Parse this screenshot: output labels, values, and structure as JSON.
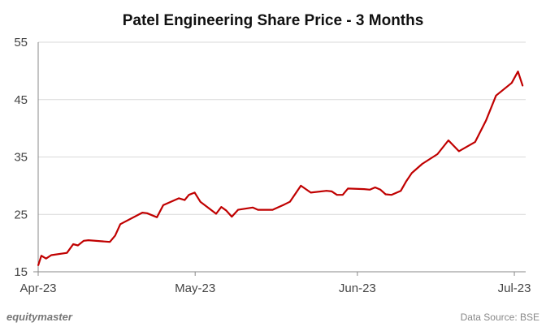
{
  "chart_data": {
    "type": "line",
    "title": "Patel Engineering Share Price - 3 Months",
    "xlabel": "",
    "ylabel": "",
    "x_unit": "days since 1 Apr 2023",
    "xlim": [
      0,
      93
    ],
    "ylim": [
      15,
      55
    ],
    "y_ticks": [
      15,
      25,
      35,
      45,
      55
    ],
    "x_ticks": [
      {
        "label": "Apr-23",
        "day": 0
      },
      {
        "label": "May-23",
        "day": 30
      },
      {
        "label": "Jun-23",
        "day": 61
      },
      {
        "label": "Jul-23",
        "day": 91
      }
    ],
    "grid": true,
    "color": "#C00000",
    "series": [
      {
        "name": "Patel Engineering",
        "x": [
          0,
          0.6,
          1.5,
          2.5,
          5.5,
          6.7,
          7.6,
          8.7,
          9.6,
          13.7,
          14.7,
          15.7,
          19.9,
          20.8,
          22.7,
          23.9,
          26.9,
          28.0,
          28.8,
          29.9,
          31.0,
          34.0,
          35.0,
          35.9,
          37.0,
          38.2,
          41.0,
          42.0,
          44.8,
          47.0,
          48.1,
          50.2,
          52.1,
          55.1,
          56.1,
          57.1,
          58.2,
          59.2,
          62.3,
          63.4,
          64.4,
          65.4,
          66.4,
          67.5,
          69.3,
          70.3,
          71.4,
          73.4,
          76.3,
          78.4,
          80.4,
          83.5,
          85.6,
          87.5,
          90.5,
          91.7,
          92.6
        ],
        "values": [
          16.1,
          17.8,
          17.3,
          17.9,
          18.3,
          19.8,
          19.6,
          20.4,
          20.5,
          20.2,
          21.3,
          23.3,
          25.3,
          25.2,
          24.5,
          26.6,
          27.8,
          27.5,
          28.4,
          28.8,
          27.2,
          25.1,
          26.3,
          25.7,
          24.6,
          25.8,
          26.2,
          25.8,
          25.8,
          26.7,
          27.2,
          30.0,
          28.8,
          29.1,
          29.0,
          28.4,
          28.4,
          29.5,
          29.4,
          29.3,
          29.7,
          29.3,
          28.5,
          28.4,
          29.1,
          30.7,
          32.2,
          33.8,
          35.5,
          37.9,
          36.0,
          37.6,
          41.4,
          45.7,
          47.9,
          49.9,
          47.4
        ]
      }
    ]
  },
  "footer": {
    "brand": "equitymaster",
    "source": "Data Source: BSE"
  }
}
